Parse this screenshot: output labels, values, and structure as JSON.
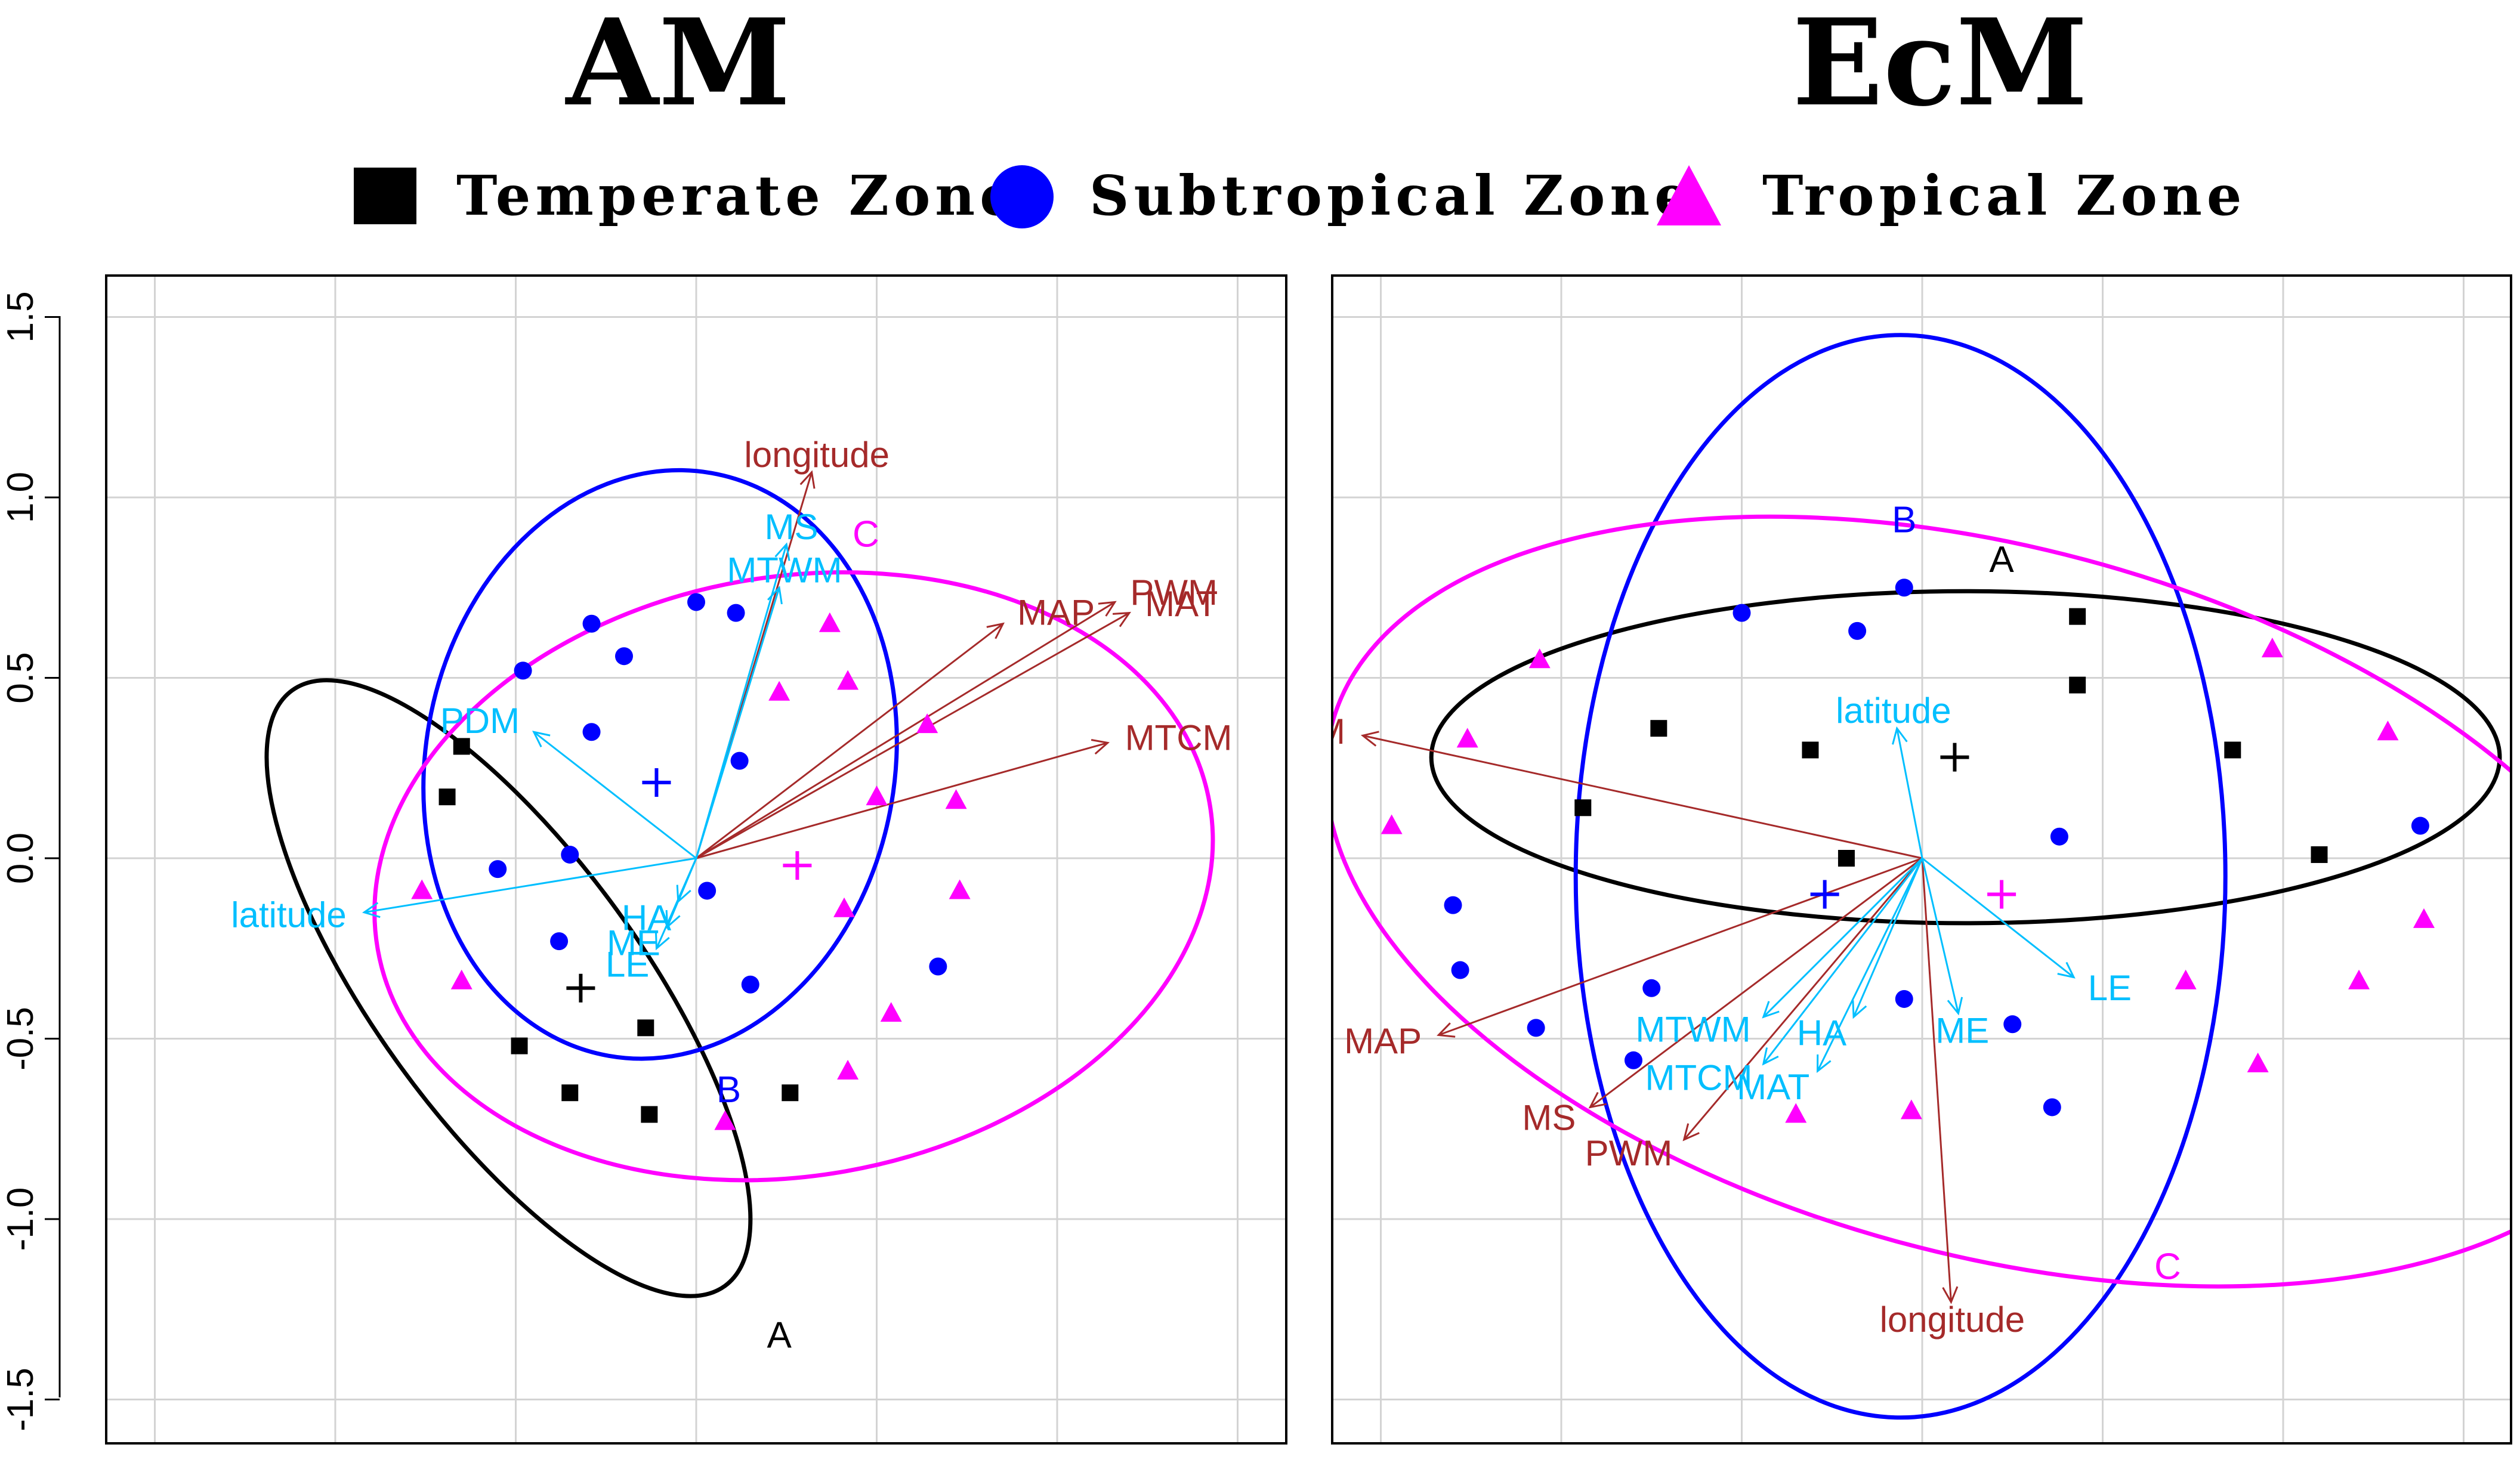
{
  "legend": [
    {
      "label": "Temperate Zone",
      "symbol": "square",
      "color": "#000000"
    },
    {
      "label": "Subtropical Zone",
      "symbol": "circle",
      "color": "#0000FF"
    },
    {
      "label": "Tropical Zone",
      "symbol": "triangle",
      "color": "#FF00FF"
    }
  ],
  "colors": {
    "arrow_brown": "#A52A2A",
    "arrow_cyan": "#00BFFF",
    "grid": "#D3D3D3"
  },
  "chart_data": [
    {
      "type": "scatter",
      "title": "AM",
      "ylim": [
        -1.5,
        1.5
      ],
      "xlim": [
        -1.5,
        1.5
      ],
      "yticks": [
        "-1.5",
        "-1.0",
        "-0.5",
        "0.0",
        "0.5",
        "1.0",
        "1.5"
      ],
      "ytick_values": [
        -1.5,
        -1.0,
        -0.5,
        0.0,
        0.5,
        1.0,
        1.5
      ],
      "grid": true,
      "series": [
        {
          "name": "Temperate Zone",
          "marker": "square",
          "color": "#000000",
          "points": [
            [
              -0.65,
              0.31
            ],
            [
              -0.69,
              0.17
            ],
            [
              -0.49,
              -0.52
            ],
            [
              -0.35,
              -0.65
            ],
            [
              -0.13,
              -0.71
            ],
            [
              -0.14,
              -0.47
            ],
            [
              0.26,
              -0.65
            ]
          ]
        },
        {
          "name": "Subtropical Zone",
          "marker": "circle",
          "color": "#0000FF",
          "points": [
            [
              -0.48,
              0.52
            ],
            [
              -0.29,
              0.65
            ],
            [
              -0.2,
              0.56
            ],
            [
              0.0,
              0.71
            ],
            [
              0.11,
              0.68
            ],
            [
              -0.29,
              0.35
            ],
            [
              -0.35,
              0.01
            ],
            [
              -0.55,
              -0.03
            ],
            [
              -0.38,
              -0.23
            ],
            [
              0.03,
              -0.09
            ],
            [
              0.12,
              0.27
            ],
            [
              0.15,
              -0.35
            ],
            [
              0.67,
              -0.3
            ]
          ]
        },
        {
          "name": "Tropical Zone",
          "marker": "triangle",
          "color": "#FF00FF",
          "points": [
            [
              0.37,
              0.65
            ],
            [
              0.42,
              0.49
            ],
            [
              0.23,
              0.46
            ],
            [
              0.64,
              0.37
            ],
            [
              0.5,
              0.17
            ],
            [
              0.72,
              0.16
            ],
            [
              -0.76,
              -0.09
            ],
            [
              -0.65,
              -0.34
            ],
            [
              0.41,
              -0.14
            ],
            [
              0.73,
              -0.09
            ],
            [
              0.54,
              -0.43
            ],
            [
              0.42,
              -0.59
            ],
            [
              0.08,
              -0.73
            ]
          ]
        }
      ],
      "arrows": [
        {
          "label": "longitude",
          "color": "#A52A2A",
          "x": 0.32,
          "y": 1.07
        },
        {
          "label": "MAP",
          "color": "#A52A2A",
          "x": 0.85,
          "y": 0.65
        },
        {
          "label": "PWM",
          "color": "#A52A2A",
          "x": 1.16,
          "y": 0.71
        },
        {
          "label": "MAT",
          "color": "#A52A2A",
          "x": 1.2,
          "y": 0.68
        },
        {
          "label": "MTCM",
          "color": "#A52A2A",
          "x": 1.14,
          "y": 0.32
        },
        {
          "label": "MS",
          "color": "#00BFFF",
          "x": 0.25,
          "y": 0.87
        },
        {
          "label": "MTWM",
          "color": "#00BFFF",
          "x": 0.23,
          "y": 0.75
        },
        {
          "label": "PDM",
          "color": "#00BFFF",
          "x": -0.45,
          "y": 0.35
        },
        {
          "label": "latitude",
          "color": "#00BFFF",
          "x": -0.92,
          "y": -0.15
        },
        {
          "label": "HA",
          "color": "#00BFFF",
          "x": -0.05,
          "y": -0.12
        },
        {
          "label": "ME",
          "color": "#00BFFF",
          "x": -0.08,
          "y": -0.19
        },
        {
          "label": "LE",
          "color": "#00BFFF",
          "x": -0.11,
          "y": -0.25
        }
      ],
      "centroids": [
        {
          "group": "A",
          "color": "#000000",
          "x": -0.32,
          "y": -0.36
        },
        {
          "group": "B",
          "color": "#0000FF",
          "x": -0.11,
          "y": 0.21
        },
        {
          "group": "C",
          "color": "#FF00FF",
          "x": 0.28,
          "y": -0.02
        }
      ],
      "ellipses": [
        {
          "group": "A",
          "color": "#000000",
          "cx": -0.52,
          "cy": -0.36,
          "rx": 1.02,
          "ry": 0.37,
          "angle": -54
        },
        {
          "group": "B",
          "color": "#0000FF",
          "cx": -0.1,
          "cy": 0.26,
          "rx": 0.65,
          "ry": 0.82,
          "angle": -10
        },
        {
          "group": "C",
          "color": "#FF00FF",
          "cx": 0.27,
          "cy": -0.05,
          "rx": 1.17,
          "ry": 0.83,
          "angle": 10
        }
      ],
      "ellipse_labels": [
        {
          "text": "A",
          "color": "#000000",
          "x": 0.23,
          "y": -1.32
        },
        {
          "text": "B",
          "color": "#0000FF",
          "x": 0.09,
          "y": -0.64
        },
        {
          "text": "C",
          "color": "#FF00FF",
          "x": 0.47,
          "y": 0.9
        }
      ]
    },
    {
      "type": "scatter",
      "title": "EcM",
      "ylim": [
        -1.5,
        1.5
      ],
      "xlim": [
        -1.5,
        1.5
      ],
      "grid": true,
      "series": [
        {
          "name": "Temperate Zone",
          "marker": "square",
          "color": "#000000",
          "points": [
            [
              0.43,
              0.67
            ],
            [
              0.43,
              0.48
            ],
            [
              -0.73,
              0.36
            ],
            [
              -0.31,
              0.3
            ],
            [
              0.86,
              0.3
            ],
            [
              -0.94,
              0.14
            ],
            [
              -0.21,
              0.0
            ],
            [
              1.1,
              0.01
            ]
          ]
        },
        {
          "name": "Subtropical Zone",
          "marker": "circle",
          "color": "#0000FF",
          "points": [
            [
              -0.05,
              0.75
            ],
            [
              -0.5,
              0.68
            ],
            [
              -0.18,
              0.63
            ],
            [
              -1.3,
              -0.13
            ],
            [
              -1.28,
              -0.31
            ],
            [
              -1.07,
              -0.47
            ],
            [
              -0.75,
              -0.36
            ],
            [
              -0.8,
              -0.56
            ],
            [
              -0.05,
              -0.39
            ],
            [
              0.25,
              -0.46
            ],
            [
              0.36,
              -0.69
            ],
            [
              0.38,
              0.06
            ],
            [
              1.38,
              0.09
            ]
          ]
        },
        {
          "name": "Tropical Zone",
          "marker": "triangle",
          "color": "#FF00FF",
          "points": [
            [
              -1.06,
              0.55
            ],
            [
              -1.26,
              0.33
            ],
            [
              -1.47,
              0.09
            ],
            [
              0.97,
              0.58
            ],
            [
              1.29,
              0.35
            ],
            [
              1.39,
              -0.17
            ],
            [
              1.21,
              -0.34
            ],
            [
              0.73,
              -0.34
            ],
            [
              0.93,
              -0.57
            ],
            [
              -0.35,
              -0.71
            ],
            [
              -0.03,
              -0.7
            ]
          ]
        }
      ],
      "arrows": [
        {
          "label": "PDM",
          "color": "#A52A2A",
          "x": -1.55,
          "y": 0.34
        },
        {
          "label": "MAP",
          "color": "#A52A2A",
          "x": -1.34,
          "y": -0.49
        },
        {
          "label": "MS",
          "color": "#A52A2A",
          "x": -0.92,
          "y": -0.69
        },
        {
          "label": "PWM",
          "color": "#A52A2A",
          "x": -0.66,
          "y": -0.78
        },
        {
          "label": "longitude",
          "color": "#A52A2A",
          "x": 0.08,
          "y": -1.23
        },
        {
          "label": "latitude",
          "color": "#00BFFF",
          "x": -0.07,
          "y": 0.36
        },
        {
          "label": "LE",
          "color": "#00BFFF",
          "x": 0.42,
          "y": -0.33
        },
        {
          "label": "MTWM",
          "color": "#00BFFF",
          "x": -0.44,
          "y": -0.44
        },
        {
          "label": "MTCM",
          "color": "#00BFFF",
          "x": -0.44,
          "y": -0.57
        },
        {
          "label": "HA",
          "color": "#00BFFF",
          "x": -0.19,
          "y": -0.44
        },
        {
          "label": "ME",
          "color": "#00BFFF",
          "x": 0.1,
          "y": -0.43
        },
        {
          "label": "MAT",
          "color": "#00BFFF",
          "x": -0.29,
          "y": -0.59
        }
      ],
      "centroids": [
        {
          "group": "A",
          "color": "#000000",
          "x": 0.09,
          "y": 0.28
        },
        {
          "group": "B",
          "color": "#0000FF",
          "x": -0.27,
          "y": -0.1
        },
        {
          "group": "C",
          "color": "#FF00FF",
          "x": 0.22,
          "y": -0.1
        }
      ],
      "ellipses": [
        {
          "group": "A",
          "color": "#000000",
          "cx": 0.12,
          "cy": 0.28,
          "rx": 1.48,
          "ry": 0.46,
          "angle": 0
        },
        {
          "group": "B",
          "color": "#0000FF",
          "cx": -0.06,
          "cy": -0.05,
          "rx": 1.5,
          "ry": 0.9,
          "angle": 90
        },
        {
          "group": "C",
          "color": "#FF00FF",
          "cx": 0.2,
          "cy": -0.12,
          "rx": 1.9,
          "ry": 0.98,
          "angle": -15
        }
      ],
      "ellipse_labels": [
        {
          "text": "A",
          "color": "#000000",
          "x": 0.22,
          "y": 0.83
        },
        {
          "text": "B",
          "color": "#0000FF",
          "x": -0.05,
          "y": 0.94
        },
        {
          "text": "C",
          "color": "#FF00FF",
          "x": 0.68,
          "y": -1.13
        }
      ]
    }
  ]
}
